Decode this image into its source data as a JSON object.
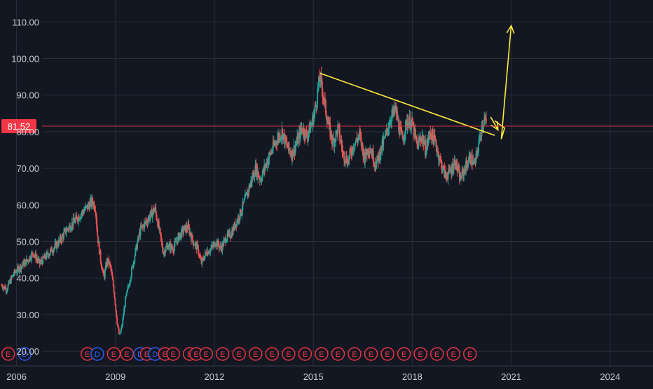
{
  "chart_data": {
    "type": "candlestick",
    "title": "",
    "xlabel": "",
    "ylabel": "",
    "ylim": [
      16,
      116
    ],
    "xlim": [
      2005.5,
      2025.3
    ],
    "grid": true,
    "y_ticks": [
      "20.00",
      "30.00",
      "40.00",
      "50.00",
      "60.00",
      "70.00",
      "80.00",
      "90.00",
      "100.00",
      "110.00"
    ],
    "y_tick_values": [
      20,
      30,
      40,
      50,
      60,
      70,
      80,
      90,
      100,
      110
    ],
    "x_ticks": [
      "2006",
      "2009",
      "2012",
      "2015",
      "2018",
      "2021",
      "2024"
    ],
    "x_tick_values": [
      2006,
      2009,
      2012,
      2015,
      2018,
      2021,
      2024
    ],
    "last_price": "81.52",
    "last_price_value": 81.52,
    "price_path": [
      [
        2005.55,
        38
      ],
      [
        2005.7,
        37
      ],
      [
        2005.9,
        41
      ],
      [
        2006.1,
        43
      ],
      [
        2006.35,
        45
      ],
      [
        2006.5,
        47
      ],
      [
        2006.7,
        44
      ],
      [
        2006.9,
        46
      ],
      [
        2007.1,
        48
      ],
      [
        2007.3,
        50
      ],
      [
        2007.5,
        53
      ],
      [
        2007.7,
        55
      ],
      [
        2007.9,
        57
      ],
      [
        2008.1,
        59
      ],
      [
        2008.3,
        61
      ],
      [
        2008.4,
        59
      ],
      [
        2008.45,
        52
      ],
      [
        2008.55,
        45
      ],
      [
        2008.65,
        40
      ],
      [
        2008.75,
        45
      ],
      [
        2008.85,
        43
      ],
      [
        2008.95,
        37
      ],
      [
        2009.05,
        28
      ],
      [
        2009.12,
        24
      ],
      [
        2009.2,
        27
      ],
      [
        2009.3,
        34
      ],
      [
        2009.45,
        40
      ],
      [
        2009.6,
        47
      ],
      [
        2009.75,
        53
      ],
      [
        2009.9,
        55
      ],
      [
        2010.05,
        57
      ],
      [
        2010.2,
        59
      ],
      [
        2010.35,
        52
      ],
      [
        2010.45,
        47
      ],
      [
        2010.6,
        49
      ],
      [
        2010.75,
        48
      ],
      [
        2010.9,
        51
      ],
      [
        2011.05,
        53
      ],
      [
        2011.2,
        54
      ],
      [
        2011.35,
        50
      ],
      [
        2011.5,
        48
      ],
      [
        2011.6,
        44
      ],
      [
        2011.75,
        47
      ],
      [
        2011.9,
        48
      ],
      [
        2012.05,
        50
      ],
      [
        2012.2,
        48
      ],
      [
        2012.35,
        51
      ],
      [
        2012.5,
        52
      ],
      [
        2012.65,
        55
      ],
      [
        2012.8,
        58
      ],
      [
        2012.95,
        62
      ],
      [
        2013.1,
        66
      ],
      [
        2013.25,
        70
      ],
      [
        2013.4,
        67
      ],
      [
        2013.6,
        72
      ],
      [
        2013.75,
        75
      ],
      [
        2013.9,
        78
      ],
      [
        2014.05,
        80
      ],
      [
        2014.2,
        76
      ],
      [
        2014.35,
        74
      ],
      [
        2014.5,
        77
      ],
      [
        2014.65,
        81
      ],
      [
        2014.8,
        79
      ],
      [
        2014.95,
        82
      ],
      [
        2015.05,
        86
      ],
      [
        2015.15,
        92
      ],
      [
        2015.2,
        95
      ],
      [
        2015.3,
        90
      ],
      [
        2015.45,
        82
      ],
      [
        2015.6,
        77
      ],
      [
        2015.75,
        81
      ],
      [
        2015.9,
        74
      ],
      [
        2016.05,
        72
      ],
      [
        2016.2,
        76
      ],
      [
        2016.4,
        79
      ],
      [
        2016.55,
        73
      ],
      [
        2016.7,
        76
      ],
      [
        2016.9,
        71
      ],
      [
        2017.05,
        75
      ],
      [
        2017.2,
        79
      ],
      [
        2017.35,
        84
      ],
      [
        2017.5,
        86
      ],
      [
        2017.6,
        81
      ],
      [
        2017.7,
        78
      ],
      [
        2017.85,
        83
      ],
      [
        2018.0,
        82
      ],
      [
        2018.15,
        76
      ],
      [
        2018.3,
        79
      ],
      [
        2018.4,
        75
      ],
      [
        2018.55,
        80
      ],
      [
        2018.7,
        77
      ],
      [
        2018.85,
        72
      ],
      [
        2019.0,
        68
      ],
      [
        2019.15,
        69
      ],
      [
        2019.3,
        72
      ],
      [
        2019.45,
        67
      ],
      [
        2019.6,
        70
      ],
      [
        2019.75,
        73
      ],
      [
        2019.9,
        71
      ],
      [
        2020.0,
        76
      ],
      [
        2020.1,
        81
      ],
      [
        2020.18,
        83.5
      ],
      [
        2020.25,
        81.52
      ]
    ],
    "trendline": [
      [
        2015.2,
        96
      ],
      [
        2020.5,
        79
      ]
    ],
    "arrow_down": {
      "from": [
        2020.38,
        84
      ],
      "to": [
        2020.6,
        80.5
      ]
    },
    "zigzag": [
      [
        2020.5,
        83
      ],
      [
        2020.8,
        81
      ],
      [
        2020.7,
        78
      ]
    ],
    "arrow_up": {
      "from": [
        2020.7,
        78
      ],
      "to": [
        2021.0,
        109
      ]
    },
    "events": [
      "E",
      "D",
      "E",
      "D",
      "E",
      "E",
      "D",
      "E",
      "D",
      "E",
      "E",
      "E",
      "E",
      "E",
      "E",
      "E",
      "E",
      "E",
      "E",
      "E",
      "E",
      "E",
      "E",
      "E",
      "E",
      "E",
      "E",
      "E",
      "E",
      "E"
    ],
    "event_x": [
      2005.75,
      2006.25,
      2008.15,
      2008.45,
      2008.95,
      2009.35,
      2009.75,
      2009.95,
      2010.2,
      2010.5,
      2010.75,
      2011.25,
      2011.45,
      2011.75,
      2012.25,
      2012.75,
      2013.25,
      2013.75,
      2014.25,
      2014.75,
      2015.25,
      2015.75,
      2016.25,
      2016.75,
      2017.25,
      2017.75,
      2018.25,
      2018.75,
      2019.25,
      2019.75
    ],
    "colors": {
      "background": "#131722",
      "grid": "#2a2e39",
      "axis_text": "#c9ccd4",
      "candle_up": "#26a69a",
      "candle_down": "#ef5350",
      "price_line": "#f23645",
      "price_label_bg": "#f23645",
      "drawing": "#ffeb3b",
      "event_e": "#f23645",
      "event_d": "#2962ff"
    }
  }
}
